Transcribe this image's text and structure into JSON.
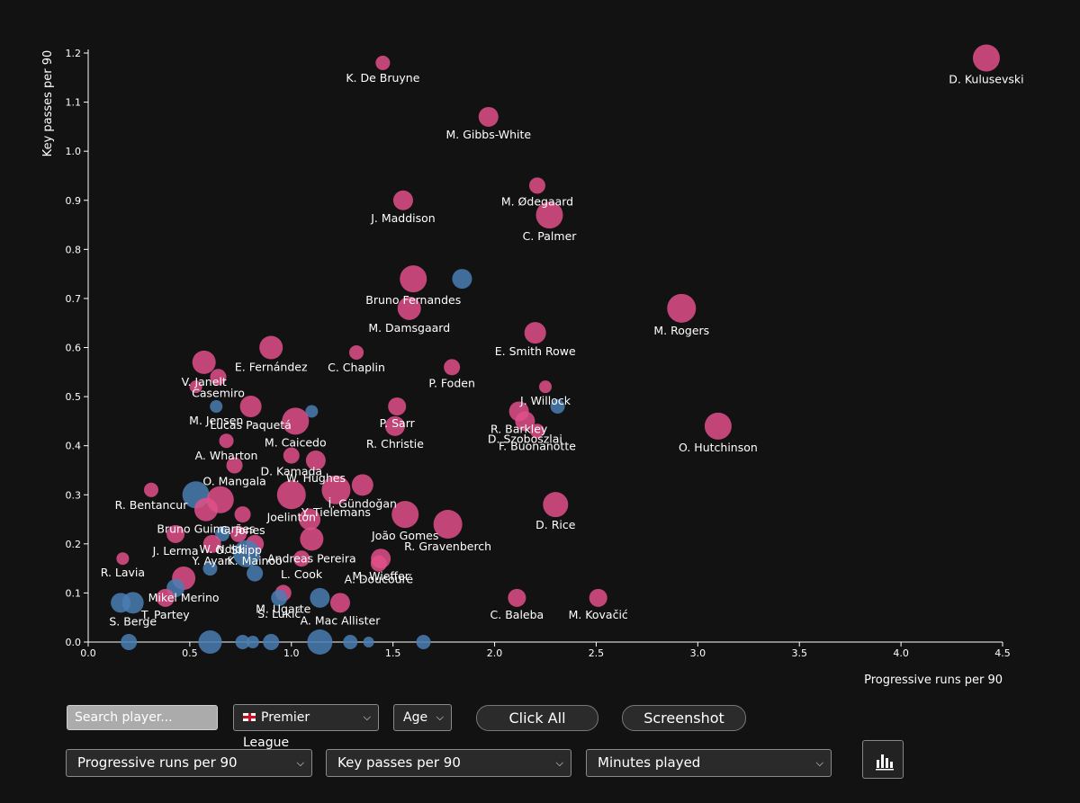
{
  "chart_data": {
    "type": "scatter",
    "xlabel": "Progressive runs per 90",
    "ylabel": "Key passes per 90",
    "xlim": [
      0,
      4.5
    ],
    "ylim": [
      0,
      1.2
    ],
    "xticks": [
      "0.0",
      "0.5",
      "1.0",
      "1.5",
      "2.0",
      "2.5",
      "3.0",
      "3.5",
      "4.0",
      "4.5"
    ],
    "yticks": [
      "0.0",
      "0.1",
      "0.2",
      "0.3",
      "0.4",
      "0.5",
      "0.6",
      "0.7",
      "0.8",
      "0.9",
      "1.0",
      "1.1",
      "1.2"
    ],
    "colors": {
      "highlighted": "#e0508a",
      "other": "#4a7eb3"
    },
    "points": [
      {
        "name": "D. Kulusevski",
        "x": 4.42,
        "y": 1.19,
        "size": 15,
        "group": "highlighted"
      },
      {
        "name": "K. De Bruyne",
        "x": 1.45,
        "y": 1.18,
        "size": 8,
        "group": "highlighted"
      },
      {
        "name": "M. Gibbs-White",
        "x": 1.97,
        "y": 1.07,
        "size": 11,
        "group": "highlighted"
      },
      {
        "name": "M. Ødegaard",
        "x": 2.21,
        "y": 0.93,
        "size": 9,
        "group": "highlighted"
      },
      {
        "name": "J. Maddison",
        "x": 1.55,
        "y": 0.9,
        "size": 11,
        "group": "highlighted"
      },
      {
        "name": "C. Palmer",
        "x": 2.27,
        "y": 0.87,
        "size": 15,
        "group": "highlighted"
      },
      {
        "name": "Bruno Fernandes",
        "x": 1.6,
        "y": 0.74,
        "size": 15,
        "group": "highlighted"
      },
      {
        "name": "",
        "x": 1.84,
        "y": 0.74,
        "size": 11,
        "group": "other"
      },
      {
        "name": "M. Damsgaard",
        "x": 1.58,
        "y": 0.68,
        "size": 13,
        "group": "highlighted"
      },
      {
        "name": "M. Rogers",
        "x": 2.92,
        "y": 0.68,
        "size": 16,
        "group": "highlighted"
      },
      {
        "name": "E. Smith Rowe",
        "x": 2.2,
        "y": 0.63,
        "size": 12,
        "group": "highlighted"
      },
      {
        "name": "E. Fernández",
        "x": 0.9,
        "y": 0.6,
        "size": 13,
        "group": "highlighted"
      },
      {
        "name": "C. Chaplin",
        "x": 1.32,
        "y": 0.59,
        "size": 8,
        "group": "highlighted"
      },
      {
        "name": "P. Foden",
        "x": 1.79,
        "y": 0.56,
        "size": 9,
        "group": "highlighted"
      },
      {
        "name": "V. Janelt",
        "x": 0.57,
        "y": 0.57,
        "size": 13,
        "group": "highlighted"
      },
      {
        "name": "Casemiro",
        "x": 0.64,
        "y": 0.54,
        "size": 9,
        "group": "highlighted"
      },
      {
        "name": "",
        "x": 0.53,
        "y": 0.52,
        "size": 7,
        "group": "highlighted"
      },
      {
        "name": "J. Willock",
        "x": 2.25,
        "y": 0.52,
        "size": 7,
        "group": "highlighted"
      },
      {
        "name": "M. Jensen",
        "x": 0.63,
        "y": 0.48,
        "size": 7,
        "group": "other"
      },
      {
        "name": "Lucas Paquetá",
        "x": 0.8,
        "y": 0.48,
        "size": 12,
        "group": "highlighted"
      },
      {
        "name": "P. Sarr",
        "x": 1.52,
        "y": 0.48,
        "size": 10,
        "group": "highlighted"
      },
      {
        "name": "",
        "x": 2.31,
        "y": 0.48,
        "size": 8,
        "group": "other"
      },
      {
        "name": "R. Barkley",
        "x": 2.12,
        "y": 0.47,
        "size": 11,
        "group": "highlighted"
      },
      {
        "name": "",
        "x": 1.1,
        "y": 0.47,
        "size": 7,
        "group": "other"
      },
      {
        "name": "M. Caicedo",
        "x": 1.02,
        "y": 0.45,
        "size": 15,
        "group": "highlighted"
      },
      {
        "name": "D. Szoboszlai",
        "x": 2.15,
        "y": 0.45,
        "size": 11,
        "group": "highlighted"
      },
      {
        "name": "R. Christie",
        "x": 1.51,
        "y": 0.44,
        "size": 11,
        "group": "highlighted"
      },
      {
        "name": "O. Hutchinson",
        "x": 3.1,
        "y": 0.44,
        "size": 15,
        "group": "highlighted"
      },
      {
        "name": "F. Buonanotte",
        "x": 2.21,
        "y": 0.43,
        "size": 8,
        "group": "highlighted"
      },
      {
        "name": "A. Wharton",
        "x": 0.68,
        "y": 0.41,
        "size": 8,
        "group": "highlighted"
      },
      {
        "name": "D. Kamada",
        "x": 1.0,
        "y": 0.38,
        "size": 9,
        "group": "highlighted"
      },
      {
        "name": "W. Hughes",
        "x": 1.12,
        "y": 0.37,
        "size": 11,
        "group": "highlighted"
      },
      {
        "name": "O. Mangala",
        "x": 0.72,
        "y": 0.36,
        "size": 9,
        "group": "highlighted"
      },
      {
        "name": "İ. Gündoğan",
        "x": 1.35,
        "y": 0.32,
        "size": 12,
        "group": "highlighted"
      },
      {
        "name": "Y. Tielemans",
        "x": 1.22,
        "y": 0.31,
        "size": 16,
        "group": "highlighted"
      },
      {
        "name": "R. Bentancur",
        "x": 0.31,
        "y": 0.31,
        "size": 8,
        "group": "highlighted"
      },
      {
        "name": "Joelinton",
        "x": 1.0,
        "y": 0.3,
        "size": 16,
        "group": "highlighted"
      },
      {
        "name": "",
        "x": 0.53,
        "y": 0.3,
        "size": 15,
        "group": "other"
      },
      {
        "name": "",
        "x": 0.65,
        "y": 0.29,
        "size": 15,
        "group": "highlighted"
      },
      {
        "name": "D. Rice",
        "x": 2.3,
        "y": 0.28,
        "size": 14,
        "group": "highlighted"
      },
      {
        "name": "João Gomes",
        "x": 1.56,
        "y": 0.26,
        "size": 15,
        "group": "highlighted"
      },
      {
        "name": "Bruno Guimarães",
        "x": 0.58,
        "y": 0.27,
        "size": 13,
        "group": "highlighted"
      },
      {
        "name": "C. Jones",
        "x": 0.76,
        "y": 0.26,
        "size": 9,
        "group": "highlighted"
      },
      {
        "name": "",
        "x": 1.09,
        "y": 0.25,
        "size": 12,
        "group": "highlighted"
      },
      {
        "name": "R. Gravenberch",
        "x": 1.77,
        "y": 0.24,
        "size": 16,
        "group": "highlighted"
      },
      {
        "name": "W. Ndidi",
        "x": 0.66,
        "y": 0.22,
        "size": 8,
        "group": "other"
      },
      {
        "name": "O. Skipp",
        "x": 0.74,
        "y": 0.22,
        "size": 9,
        "group": "highlighted"
      },
      {
        "name": "J. Lerma",
        "x": 0.43,
        "y": 0.22,
        "size": 10,
        "group": "highlighted"
      },
      {
        "name": "Andreas Pereira",
        "x": 1.1,
        "y": 0.21,
        "size": 13,
        "group": "highlighted"
      },
      {
        "name": "Y. Ayari",
        "x": 0.61,
        "y": 0.2,
        "size": 10,
        "group": "highlighted"
      },
      {
        "name": "K. Mainoo",
        "x": 0.82,
        "y": 0.2,
        "size": 10,
        "group": "highlighted"
      },
      {
        "name": "",
        "x": 0.78,
        "y": 0.18,
        "size": 15,
        "group": "other"
      },
      {
        "name": "L. Cook",
        "x": 1.05,
        "y": 0.17,
        "size": 9,
        "group": "highlighted"
      },
      {
        "name": "R. Lavia",
        "x": 0.17,
        "y": 0.17,
        "size": 7,
        "group": "highlighted"
      },
      {
        "name": "M. Wieffer",
        "x": 1.44,
        "y": 0.17,
        "size": 11,
        "group": "highlighted"
      },
      {
        "name": "A. Doucouré",
        "x": 1.43,
        "y": 0.16,
        "size": 9,
        "group": "highlighted"
      },
      {
        "name": "",
        "x": 0.6,
        "y": 0.15,
        "size": 8,
        "group": "other"
      },
      {
        "name": "Mikel Merino",
        "x": 0.47,
        "y": 0.13,
        "size": 13,
        "group": "highlighted"
      },
      {
        "name": "",
        "x": 0.82,
        "y": 0.14,
        "size": 9,
        "group": "other"
      },
      {
        "name": "",
        "x": 0.43,
        "y": 0.11,
        "size": 10,
        "group": "other"
      },
      {
        "name": "M. Ugarte",
        "x": 0.96,
        "y": 0.1,
        "size": 9,
        "group": "highlighted"
      },
      {
        "name": "T. Partey",
        "x": 0.38,
        "y": 0.09,
        "size": 10,
        "group": "highlighted"
      },
      {
        "name": "",
        "x": 1.14,
        "y": 0.09,
        "size": 11,
        "group": "other"
      },
      {
        "name": "C. Baleba",
        "x": 2.11,
        "y": 0.09,
        "size": 10,
        "group": "highlighted"
      },
      {
        "name": "M. Kovačić",
        "x": 2.51,
        "y": 0.09,
        "size": 10,
        "group": "highlighted"
      },
      {
        "name": "",
        "x": 0.16,
        "y": 0.08,
        "size": 11,
        "group": "other"
      },
      {
        "name": "S. Berge",
        "x": 0.22,
        "y": 0.08,
        "size": 12,
        "group": "other"
      },
      {
        "name": "S. Lukić",
        "x": 0.94,
        "y": 0.09,
        "size": 9,
        "group": "other"
      },
      {
        "name": "A. Mac Allister",
        "x": 1.24,
        "y": 0.08,
        "size": 11,
        "group": "highlighted"
      },
      {
        "name": "",
        "x": 0.2,
        "y": 0.0,
        "size": 9,
        "group": "other"
      },
      {
        "name": "",
        "x": 0.6,
        "y": 0.0,
        "size": 13,
        "group": "other"
      },
      {
        "name": "",
        "x": 0.76,
        "y": 0.0,
        "size": 8,
        "group": "other"
      },
      {
        "name": "",
        "x": 0.81,
        "y": 0.0,
        "size": 7,
        "group": "other"
      },
      {
        "name": "",
        "x": 0.9,
        "y": 0.0,
        "size": 9,
        "group": "other"
      },
      {
        "name": "",
        "x": 1.14,
        "y": 0.0,
        "size": 14,
        "group": "other"
      },
      {
        "name": "",
        "x": 1.29,
        "y": 0.0,
        "size": 8,
        "group": "other"
      },
      {
        "name": "",
        "x": 1.38,
        "y": 0.0,
        "size": 6,
        "group": "other"
      },
      {
        "name": "",
        "x": 1.65,
        "y": 0.0,
        "size": 8,
        "group": "other"
      }
    ]
  },
  "controls": {
    "search_placeholder": "Search player...",
    "league_select": "Premier League",
    "age_select": "Age",
    "click_all_label": "Click All",
    "screenshot_label": "Screenshot",
    "x_metric_select": "Progressive runs per 90",
    "y_metric_select": "Key passes per 90",
    "size_metric_select": "Minutes played",
    "chart_icon": "bar-chart-icon",
    "dropdown_icon": "chevron-down-icon",
    "flag_icon": "england-flag-icon"
  }
}
